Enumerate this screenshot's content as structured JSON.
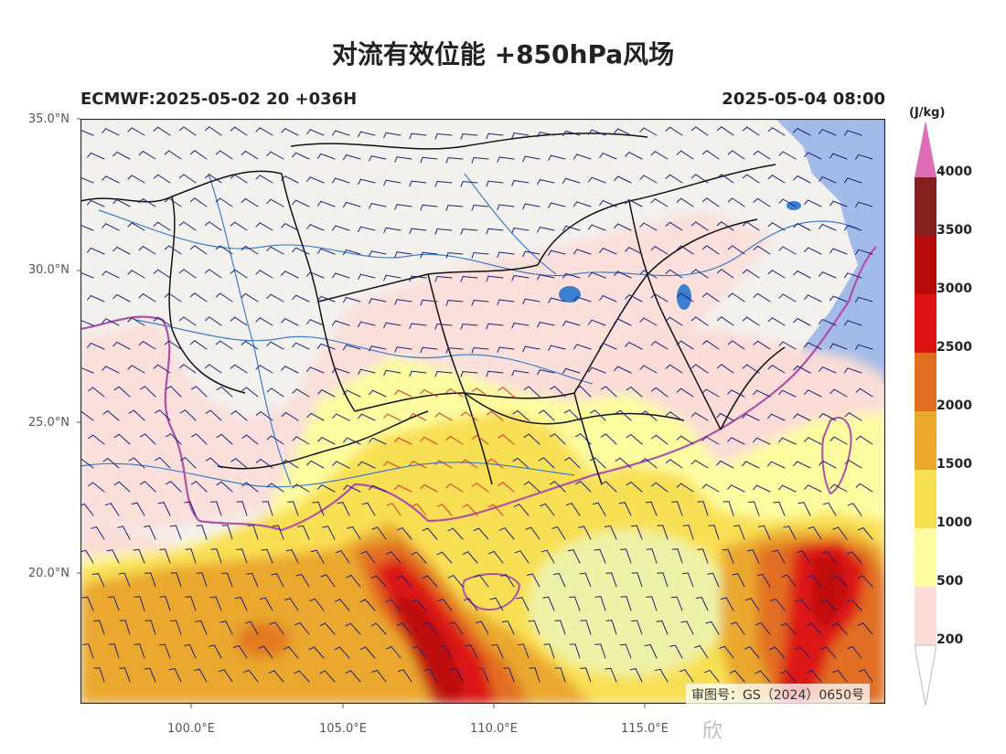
{
  "title": "对流有效位能 +850hPa风场",
  "model_run": "ECMWF:2025-05-02 20 +036H",
  "valid_time": "2025-05-04 08:00",
  "lat_labels": [
    "35.0°N",
    "30.0°N",
    "25.0°N",
    "20.0°N"
  ],
  "lon_labels": [
    "100.0°E",
    "105.0°E",
    "110.0°E",
    "115.0°E"
  ],
  "colorbar": {
    "unit": "(J/kg)",
    "ticks": [
      "200",
      "500",
      "1000",
      "1500",
      "2000",
      "2500",
      "3000",
      "3500",
      "4000"
    ],
    "colors": [
      "#fbdcd6",
      "#fdfda0",
      "#f9df52",
      "#eaa82d",
      "#e16e20",
      "#dd1212",
      "#b50b0b",
      "#852020",
      "#de6cb6"
    ]
  },
  "map_extent": {
    "lon": [
      96.5,
      123.0
    ],
    "lat": [
      15.7,
      35.0
    ]
  },
  "review_number": "审图号：GS（2024）0650号",
  "watermark": "欣",
  "colors": {
    "ocean": "#a3bbe8",
    "land_background": "#f3f1ee",
    "province_border": "#111111",
    "china_border": "#b050a8",
    "rivers": "#3a7fd0",
    "wind_barbs": "#1a237e",
    "strong_barbs": "#e03030"
  }
}
